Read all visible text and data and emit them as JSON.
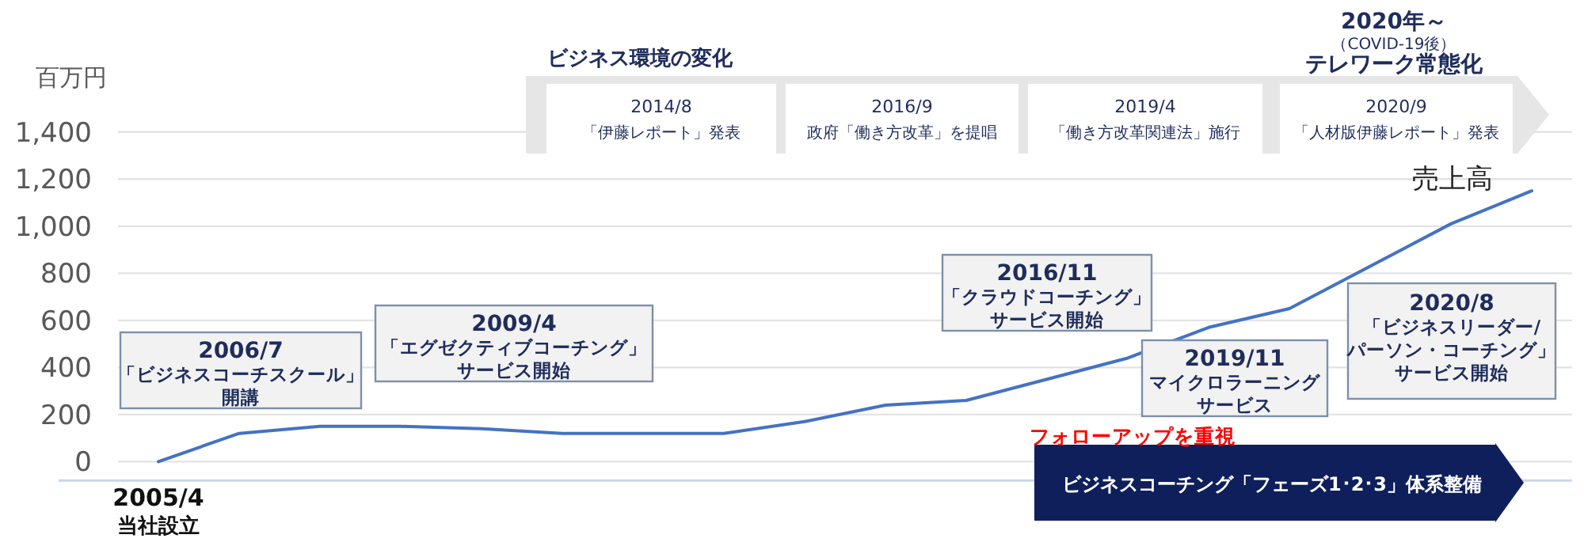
{
  "chart_data": {
    "type": "line",
    "ylabel": "百万円",
    "categories": [
      "2005/4\n当社設立",
      null,
      null,
      null,
      null,
      null,
      null,
      null,
      null,
      null,
      null,
      null,
      null,
      null,
      null,
      null,
      null,
      null
    ],
    "series": [
      {
        "name": "売上高",
        "color": "#4472c4",
        "values": [
          0,
          120,
          150,
          150,
          140,
          120,
          120,
          120,
          170,
          240,
          260,
          350,
          440,
          570,
          650,
          null,
          1010,
          1150
        ]
      }
    ],
    "ylim": [
      -80,
      1400
    ],
    "yticks": [
      0,
      200,
      400,
      600,
      800,
      {
        "value": 1000,
        "label": "1,000"
      },
      {
        "value": 1200,
        "label": "1,200"
      },
      {
        "value": 1400,
        "label": "1,400"
      }
    ],
    "grid": "y",
    "annotations": [
      "2006/7",
      "「ビジネスコーチスクール」",
      "開講",
      "2009/4",
      "「エグゼクティブコーチング」",
      "サービス開始",
      "2016/11",
      "「クラウドコーチング」",
      "サービス開始",
      "2019/11",
      "マイクロラーニング",
      "サービス",
      "2020/8",
      "「ビジネスリーダー/",
      "パーソン・コーチング」",
      "サービス開始",
      "ビジネス環境の変化",
      "2014/8",
      "「伊藤レポート」発表",
      "2016/9",
      "政府「働き方改革」を提唱",
      "2019/4",
      "「働き方改革関連法」施行",
      "2020/9",
      "「人材版伊藤レポート」発表",
      "2020年～",
      "（COVID-19後）",
      "テレワーク常態化",
      "フォローアップを重視",
      "ビジネスコーチング「フェーズ1･2･3」体系整備"
    ]
  }
}
